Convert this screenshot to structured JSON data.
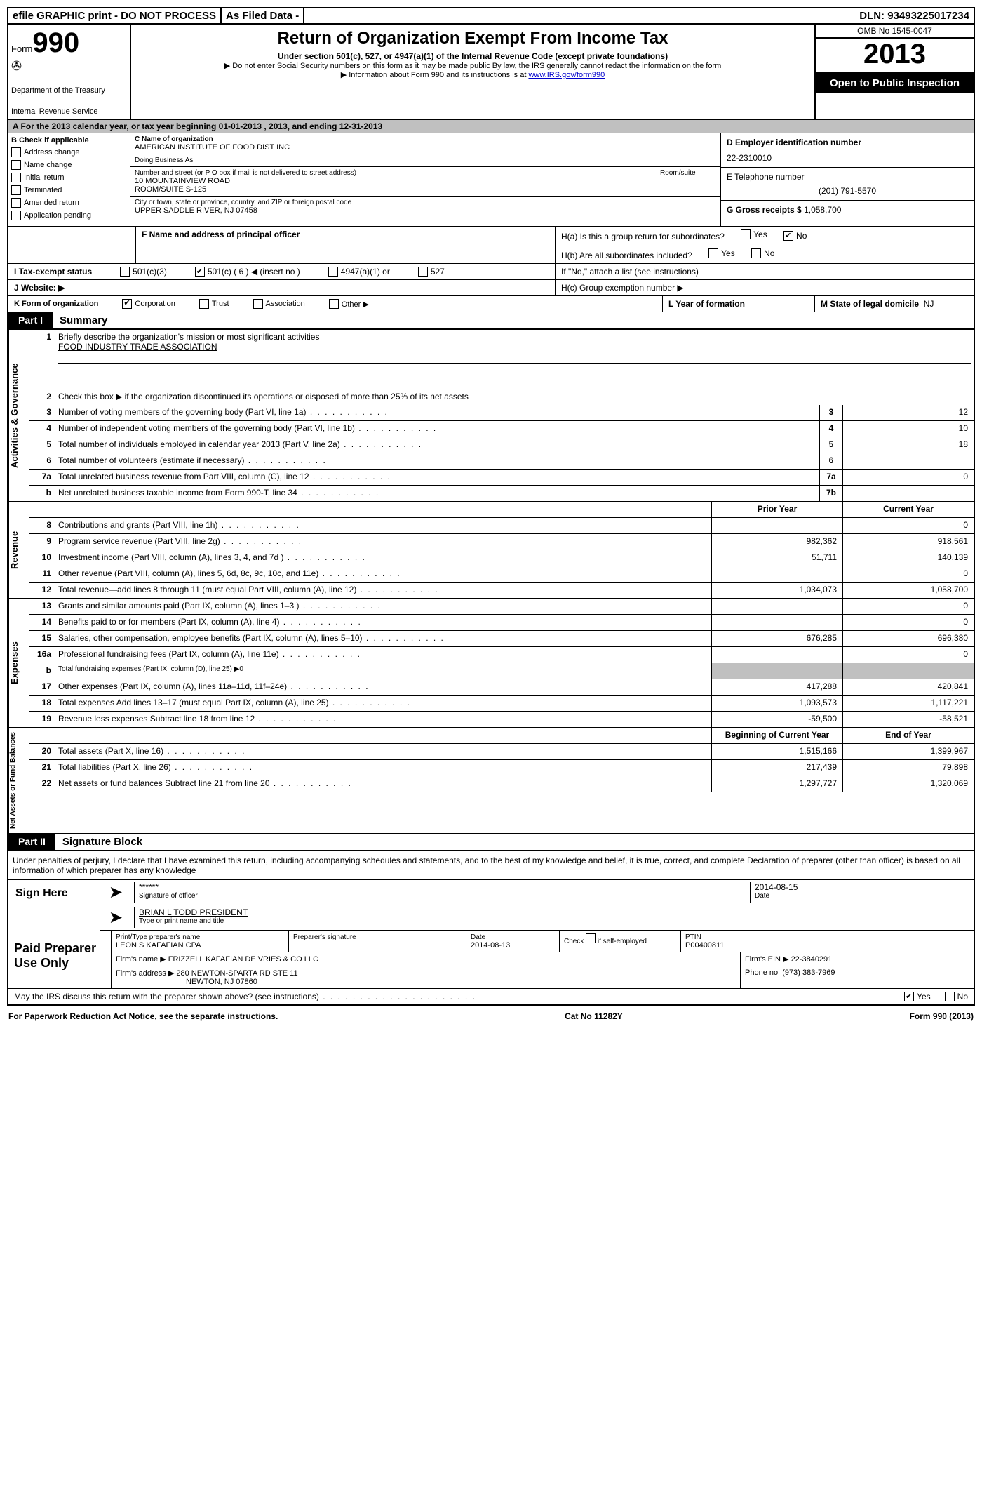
{
  "topbar": {
    "efile": "efile GRAPHIC print - DO NOT PROCESS",
    "asfiled": "As Filed Data -",
    "dln_label": "DLN:",
    "dln": "93493225017234"
  },
  "header": {
    "form_word": "Form",
    "form_number": "990",
    "dept1": "Department of the Treasury",
    "dept2": "Internal Revenue Service",
    "title": "Return of Organization Exempt From Income Tax",
    "subtitle": "Under section 501(c), 527, or 4947(a)(1) of the Internal Revenue Code (except private foundations)",
    "note1": "▶ Do not enter Social Security numbers on this form as it may be made public  By law, the IRS generally cannot redact the information on the form",
    "note2_pre": "▶ Information about Form 990 and its instructions is at ",
    "note2_link": "www.IRS.gov/form990",
    "omb": "OMB No  1545-0047",
    "year": "2013",
    "open": "Open to Public Inspection"
  },
  "row_a": "A  For the 2013 calendar year, or tax year beginning 01-01-2013    , 2013, and ending 12-31-2013",
  "sectionB": {
    "label": "B  Check if applicable",
    "items": [
      "Address change",
      "Name change",
      "Initial return",
      "Terminated",
      "Amended return",
      "Application pending"
    ]
  },
  "sectionC": {
    "c_label": "C Name of organization",
    "org_name": "AMERICAN INSTITUTE OF FOOD DIST INC",
    "dba_label": "Doing Business As",
    "addr_label": "Number and street (or P O  box if mail is not delivered to street address)",
    "room_label": "Room/suite",
    "addr1": "10 MOUNTAINVIEW ROAD",
    "addr2": "ROOM/SUITE S-125",
    "city_label": "City or town, state or province, country, and ZIP or foreign postal code",
    "city": "UPPER SADDLE RIVER, NJ  07458",
    "f_label": "F   Name and address of principal officer"
  },
  "sectionD": {
    "label": "D Employer identification number",
    "ein": "22-2310010",
    "e_label": "E Telephone number",
    "phone": "(201) 791-5570",
    "g_label": "G Gross receipts $",
    "gross": "1,058,700"
  },
  "sectionH": {
    "ha": "H(a)  Is this a group return for subordinates?",
    "hb": "H(b)  Are all subordinates included?",
    "hb_note": "If \"No,\" attach a list  (see instructions)",
    "hc": "H(c)   Group exemption number ▶",
    "yes": "Yes",
    "no": "No"
  },
  "row_i": {
    "label": "I   Tax-exempt status",
    "opts": [
      "501(c)(3)",
      "501(c) ( 6 ) ◀ (insert no )",
      "4947(a)(1) or",
      "527"
    ]
  },
  "row_j": "J   Website: ▶",
  "row_k": {
    "label": "K Form of organization",
    "opts": [
      "Corporation",
      "Trust",
      "Association",
      "Other ▶"
    ],
    "l_label": "L Year of formation",
    "m_label": "M State of legal domicile",
    "m_val": "NJ"
  },
  "part1": {
    "label": "Part I",
    "title": "Summary"
  },
  "part2": {
    "label": "Part II",
    "title": "Signature Block"
  },
  "activities": {
    "vlabel": "Activities & Governance",
    "l1": "Briefly describe the organization's mission or most significant activities",
    "l1_ans": "FOOD INDUSTRY TRADE ASSOCIATION",
    "l2": "Check this box ▶      if the organization discontinued its operations or disposed of more than 25% of its net assets",
    "rows": [
      {
        "n": "3",
        "t": "Number of voting members of the governing body (Part VI, line 1a)",
        "b": "3",
        "v": "12"
      },
      {
        "n": "4",
        "t": "Number of independent voting members of the governing body (Part VI, line 1b)",
        "b": "4",
        "v": "10"
      },
      {
        "n": "5",
        "t": "Total number of individuals employed in calendar year 2013 (Part V, line 2a)",
        "b": "5",
        "v": "18"
      },
      {
        "n": "6",
        "t": "Total number of volunteers (estimate if necessary)",
        "b": "6",
        "v": ""
      },
      {
        "n": "7a",
        "t": "Total unrelated business revenue from Part VIII, column (C), line 12",
        "b": "7a",
        "v": "0"
      },
      {
        "n": "b",
        "t": "Net unrelated business taxable income from Form 990-T, line 34",
        "b": "7b",
        "v": ""
      }
    ]
  },
  "revenue": {
    "vlabel": "Revenue",
    "head_prior": "Prior Year",
    "head_current": "Current Year",
    "rows": [
      {
        "n": "8",
        "t": "Contributions and grants (Part VIII, line 1h)",
        "p": "",
        "c": "0"
      },
      {
        "n": "9",
        "t": "Program service revenue (Part VIII, line 2g)",
        "p": "982,362",
        "c": "918,561"
      },
      {
        "n": "10",
        "t": "Investment income (Part VIII, column (A), lines 3, 4, and 7d )",
        "p": "51,711",
        "c": "140,139"
      },
      {
        "n": "11",
        "t": "Other revenue (Part VIII, column (A), lines 5, 6d, 8c, 9c, 10c, and 11e)",
        "p": "",
        "c": "0"
      },
      {
        "n": "12",
        "t": "Total revenue—add lines 8 through 11 (must equal Part VIII, column (A), line 12)",
        "p": "1,034,073",
        "c": "1,058,700"
      }
    ]
  },
  "expenses": {
    "vlabel": "Expenses",
    "rows": [
      {
        "n": "13",
        "t": "Grants and similar amounts paid (Part IX, column (A), lines 1–3 )",
        "p": "",
        "c": "0"
      },
      {
        "n": "14",
        "t": "Benefits paid to or for members (Part IX, column (A), line 4)",
        "p": "",
        "c": "0"
      },
      {
        "n": "15",
        "t": "Salaries, other compensation, employee benefits (Part IX, column (A), lines 5–10)",
        "p": "676,285",
        "c": "696,380"
      },
      {
        "n": "16a",
        "t": "Professional fundraising fees (Part IX, column (A), line 11e)",
        "p": "",
        "c": "0"
      },
      {
        "n": "b",
        "t_small": "Total fundraising expenses (Part IX, column (D), line 25) ▶",
        "t_val": "0",
        "p": "grey",
        "c": "grey"
      },
      {
        "n": "17",
        "t": "Other expenses (Part IX, column (A), lines 11a–11d, 11f–24e)",
        "p": "417,288",
        "c": "420,841"
      },
      {
        "n": "18",
        "t": "Total expenses  Add lines 13–17 (must equal Part IX, column (A), line 25)",
        "p": "1,093,573",
        "c": "1,117,221"
      },
      {
        "n": "19",
        "t": "Revenue less expenses  Subtract line 18 from line 12",
        "p": "-59,500",
        "c": "-58,521"
      }
    ]
  },
  "netassets": {
    "vlabel": "Net Assets or Fund Balances",
    "head_begin": "Beginning of Current Year",
    "head_end": "End of Year",
    "rows": [
      {
        "n": "20",
        "t": "Total assets (Part X, line 16)",
        "p": "1,515,166",
        "c": "1,399,967"
      },
      {
        "n": "21",
        "t": "Total liabilities (Part X, line 26)",
        "p": "217,439",
        "c": "79,898"
      },
      {
        "n": "22",
        "t": "Net assets or fund balances  Subtract line 21 from line 20",
        "p": "1,297,727",
        "c": "1,320,069"
      }
    ]
  },
  "sig": {
    "declaration": "Under penalties of perjury, I declare that I have examined this return, including accompanying schedules and statements, and to the best of my knowledge and belief, it is true, correct, and complete  Declaration of preparer (other than officer) is based on all information of which preparer has any knowledge",
    "sign_here": "Sign Here",
    "stars": "******",
    "sig_officer": "Signature of officer",
    "date_label": "Date",
    "date": "2014-08-15",
    "officer_name": "BRIAN L TODD PRESIDENT",
    "type_name": "Type or print name and title"
  },
  "prep": {
    "label": "Paid Preparer Use Only",
    "h_name": "Print/Type preparer's name",
    "prep_name": "LEON S KAFAFIAN CPA",
    "h_sig": "Preparer's signature",
    "h_date": "Date",
    "prep_date": "2014-08-13",
    "check_label": "Check        if self-employed",
    "ptin_label": "PTIN",
    "ptin": "P00400811",
    "firm_name_label": "Firm's name     ▶",
    "firm_name": "FRIZZELL KAFAFIAN DE VRIES & CO LLC",
    "firm_ein_label": "Firm's EIN ▶",
    "firm_ein": "22-3840291",
    "firm_addr_label": "Firm's address ▶",
    "firm_addr1": "280 NEWTON-SPARTA RD STE 11",
    "firm_addr2": "NEWTON, NJ  07860",
    "phone_label": "Phone no",
    "phone": "(973) 383-7969",
    "discuss": "May the IRS discuss this return with the preparer shown above? (see instructions)",
    "yes": "Yes",
    "no": "No"
  },
  "footer": {
    "left": "For Paperwork Reduction Act Notice, see the separate instructions.",
    "mid": "Cat No  11282Y",
    "right": "Form 990 (2013)"
  }
}
